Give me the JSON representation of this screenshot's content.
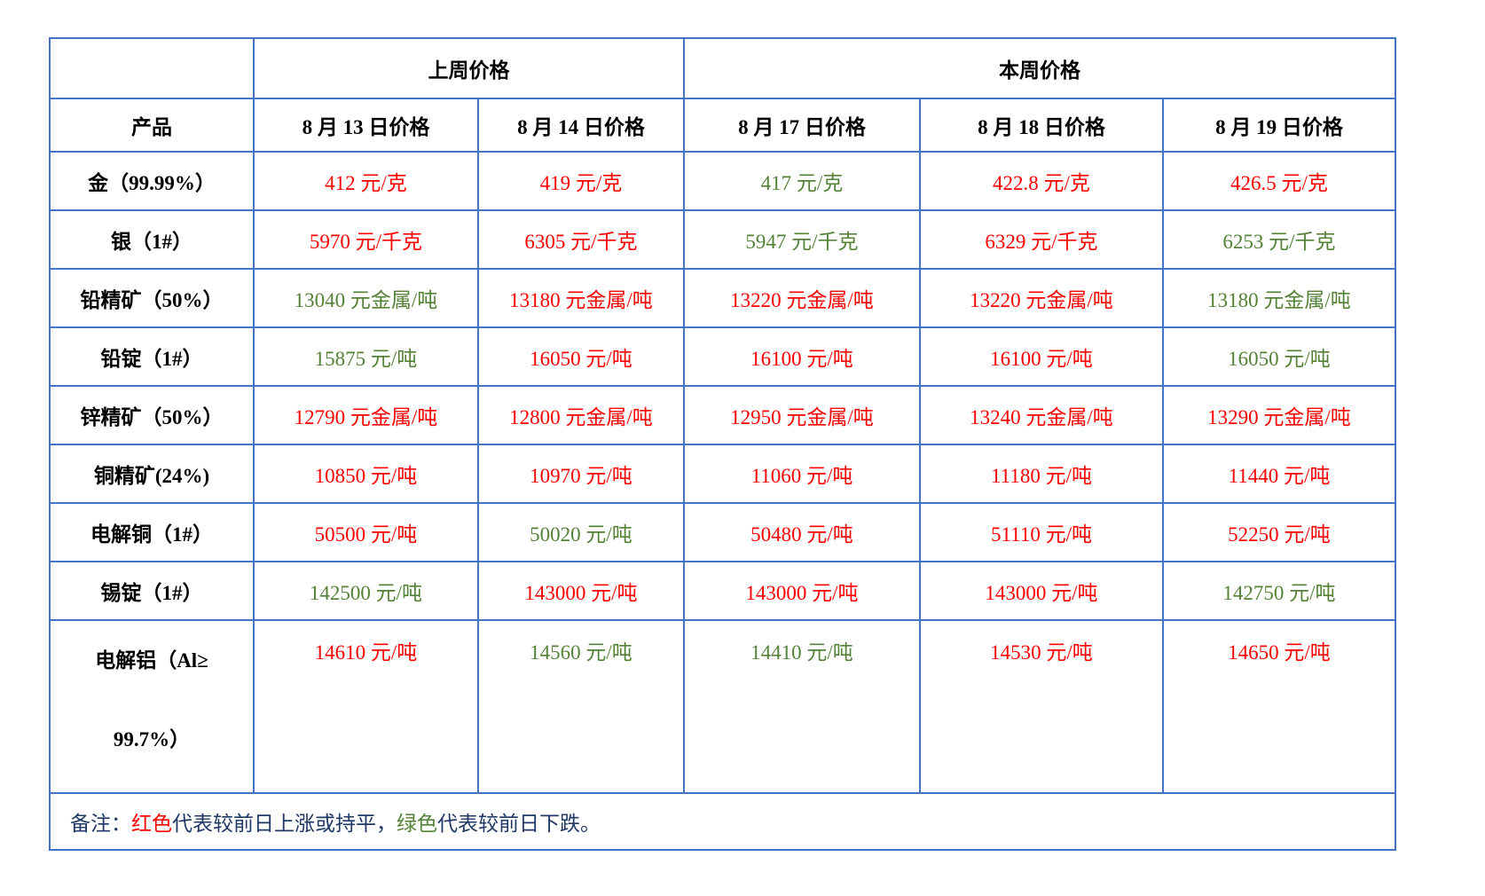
{
  "colors": {
    "up": "#FF0000",
    "down": "#538135",
    "border": "#4472C4",
    "note_text": "#1F3864",
    "header_text": "#000000"
  },
  "table": {
    "group_headers": {
      "corner": "",
      "last_week": "上周价格",
      "this_week": "本周价格"
    },
    "columns": [
      "产品",
      "8 月 13 日价格",
      "8 月 14 日价格",
      "8 月 17 日价格",
      "8 月 18 日价格",
      "8 月 19 日价格"
    ],
    "rows": [
      {
        "product": "金（99.99%）",
        "prices": [
          {
            "text": "412 元/克",
            "trend": "up"
          },
          {
            "text": "419 元/克",
            "trend": "up"
          },
          {
            "text": "417 元/克",
            "trend": "down"
          },
          {
            "text": "422.8 元/克",
            "trend": "up"
          },
          {
            "text": "426.5 元/克",
            "trend": "up"
          }
        ]
      },
      {
        "product": "银（1#）",
        "prices": [
          {
            "text": "5970 元/千克",
            "trend": "up"
          },
          {
            "text": "6305 元/千克",
            "trend": "up"
          },
          {
            "text": "5947 元/千克",
            "trend": "down"
          },
          {
            "text": "6329 元/千克",
            "trend": "up"
          },
          {
            "text": "6253 元/千克",
            "trend": "down"
          }
        ]
      },
      {
        "product": "铅精矿（50%）",
        "prices": [
          {
            "text": "13040 元金属/吨",
            "trend": "down"
          },
          {
            "text": "13180 元金属/吨",
            "trend": "up"
          },
          {
            "text": "13220 元金属/吨",
            "trend": "up"
          },
          {
            "text": "13220 元金属/吨",
            "trend": "up"
          },
          {
            "text": "13180 元金属/吨",
            "trend": "down"
          }
        ]
      },
      {
        "product": "铅锭（1#）",
        "prices": [
          {
            "text": "15875 元/吨",
            "trend": "down"
          },
          {
            "text": "16050 元/吨",
            "trend": "up"
          },
          {
            "text": "16100 元/吨",
            "trend": "up"
          },
          {
            "text": "16100 元/吨",
            "trend": "up"
          },
          {
            "text": "16050 元/吨",
            "trend": "down"
          }
        ]
      },
      {
        "product": "锌精矿（50%）",
        "prices": [
          {
            "text": "12790 元金属/吨",
            "trend": "up"
          },
          {
            "text": "12800 元金属/吨",
            "trend": "up"
          },
          {
            "text": "12950 元金属/吨",
            "trend": "up"
          },
          {
            "text": "13240 元金属/吨",
            "trend": "up"
          },
          {
            "text": "13290 元金属/吨",
            "trend": "up"
          }
        ]
      },
      {
        "product": "铜精矿(24%)",
        "prices": [
          {
            "text": "10850 元/吨",
            "trend": "up"
          },
          {
            "text": "10970 元/吨",
            "trend": "up"
          },
          {
            "text": "11060 元/吨",
            "trend": "up"
          },
          {
            "text": "11180 元/吨",
            "trend": "up"
          },
          {
            "text": "11440 元/吨",
            "trend": "up"
          }
        ]
      },
      {
        "product": "电解铜（1#）",
        "prices": [
          {
            "text": "50500 元/吨",
            "trend": "up"
          },
          {
            "text": "50020 元/吨",
            "trend": "down"
          },
          {
            "text": "50480 元/吨",
            "trend": "up"
          },
          {
            "text": "51110 元/吨",
            "trend": "up"
          },
          {
            "text": "52250 元/吨",
            "trend": "up"
          }
        ]
      },
      {
        "product": "锡锭（1#）",
        "prices": [
          {
            "text": "142500 元/吨",
            "trend": "down"
          },
          {
            "text": "143000 元/吨",
            "trend": "up"
          },
          {
            "text": "143000 元/吨",
            "trend": "up"
          },
          {
            "text": "143000 元/吨",
            "trend": "up"
          },
          {
            "text": "142750 元/吨",
            "trend": "down"
          }
        ]
      },
      {
        "product": "电解铝（Al≥\n99.7%）",
        "tall": true,
        "prices": [
          {
            "text": "14610 元/吨",
            "trend": "up"
          },
          {
            "text": "14560 元/吨",
            "trend": "down"
          },
          {
            "text": "14410 元/吨",
            "trend": "down"
          },
          {
            "text": "14530 元/吨",
            "trend": "up"
          },
          {
            "text": "14650 元/吨",
            "trend": "up"
          }
        ]
      }
    ],
    "note": {
      "prefix": "备注：",
      "red_label": "红色",
      "red_desc": "代表较前日上涨或持平，",
      "green_label": "绿色",
      "green_desc": "代表较前日下跌。"
    }
  }
}
